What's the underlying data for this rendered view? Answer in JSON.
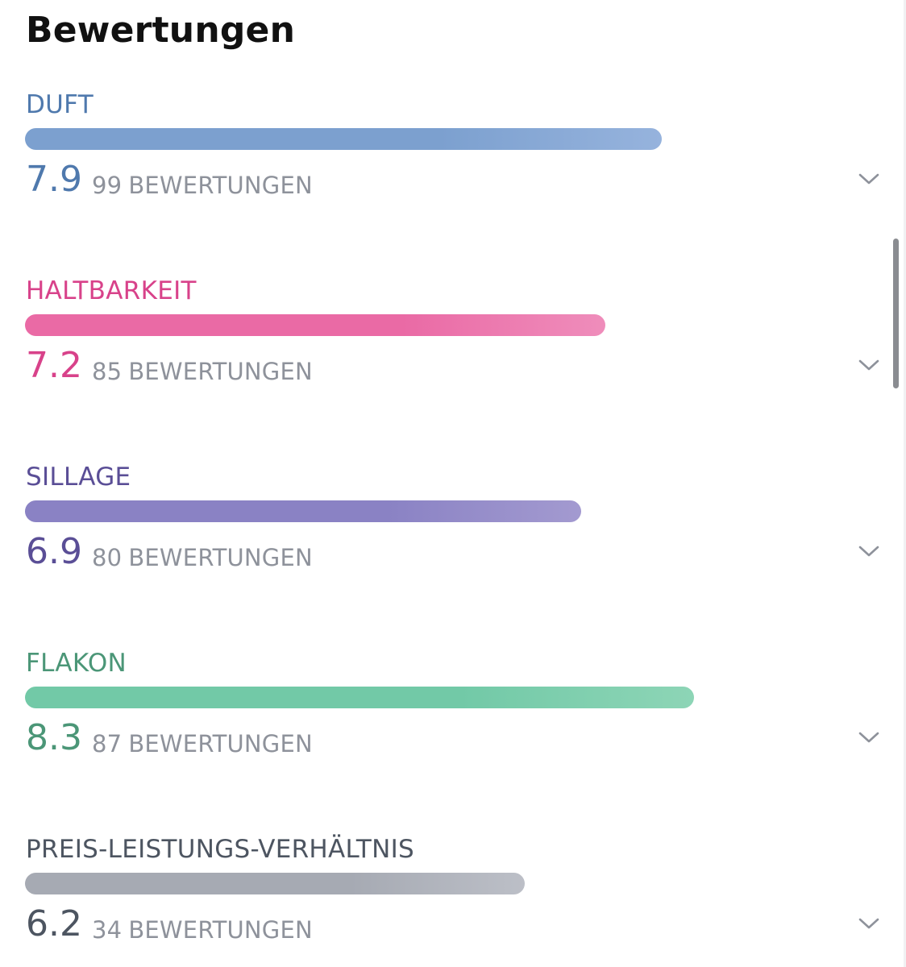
{
  "title": "Bewertungen",
  "count_suffix": "BEWERTUNGEN",
  "max_score": 10,
  "ratings": [
    {
      "label": "DUFT",
      "score": "7.9",
      "value": 7.9,
      "count": "99",
      "color": "#4f79ad",
      "bar_from": "#7ca0cf",
      "bar_to": "#96b3dd"
    },
    {
      "label": "HALTBARKEIT",
      "score": "7.2",
      "value": 7.2,
      "count": "85",
      "color": "#d8428a",
      "bar_from": "#ea6aa5",
      "bar_to": "#ef8dbb"
    },
    {
      "label": "SILLAGE",
      "score": "6.9",
      "value": 6.9,
      "count": "80",
      "color": "#5a4e96",
      "bar_from": "#8a82c4",
      "bar_to": "#a39ad0"
    },
    {
      "label": "FLAKON",
      "score": "8.3",
      "value": 8.3,
      "count": "87",
      "color": "#4b9677",
      "bar_from": "#72c9a7",
      "bar_to": "#8dd5b6"
    },
    {
      "label": "PREIS-LEISTUNGS-VERHÄLTNIS",
      "score": "6.2",
      "value": 6.2,
      "count": "34",
      "color": "#4d5561",
      "bar_from": "#a6aab3",
      "bar_to": "#bcbfc7"
    }
  ],
  "icons": {
    "expand": "chevron-down-icon"
  },
  "colors": {
    "chevron": "#8e929b",
    "scrollbar": "#8a8c91"
  }
}
